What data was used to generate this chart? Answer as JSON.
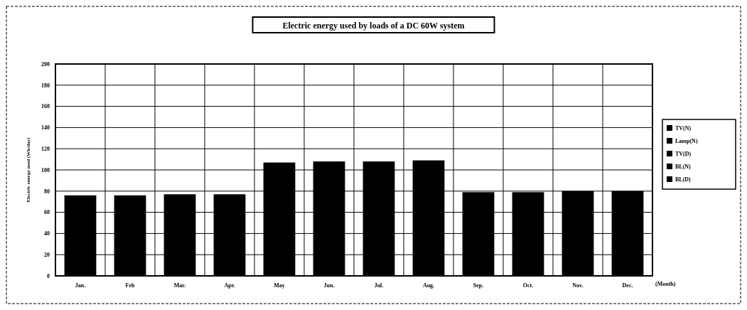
{
  "chart_data": {
    "type": "bar",
    "title": "Electric energy used by loads of a DC 60W system",
    "xlabel": "(Month)",
    "ylabel": "Electric energy used (Wh/day)",
    "categories": [
      "Jan.",
      "Feb",
      "Mar.",
      "Apr.",
      "May",
      "Jun.",
      "Jul.",
      "Aug.",
      "Sep.",
      "Oct.",
      "Nov.",
      "Dec."
    ],
    "values": [
      76,
      76,
      77,
      77,
      107,
      108,
      108,
      109,
      79,
      79,
      80,
      80
    ],
    "color": "#000000",
    "ylim": [
      0,
      200
    ],
    "yticks": [
      0,
      20,
      40,
      60,
      80,
      100,
      120,
      140,
      160,
      180,
      200
    ],
    "grid": true,
    "annotations": [
      "TV(N)",
      "Lamp(N)",
      "TV(D)",
      "BL(N)",
      "BL(D)"
    ]
  }
}
